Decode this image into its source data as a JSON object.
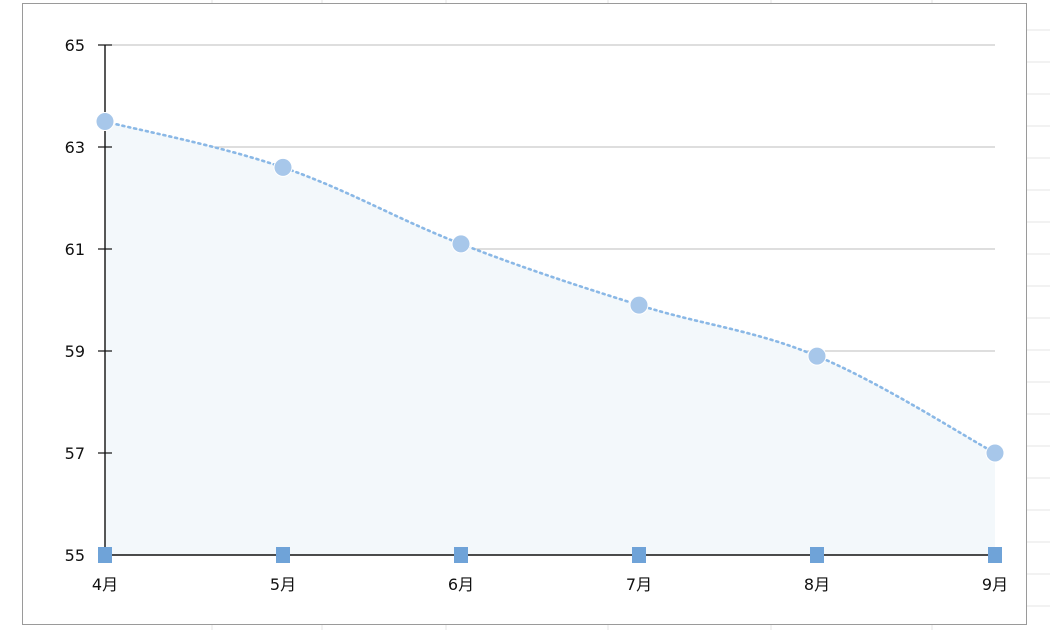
{
  "chart_data": {
    "type": "area",
    "categories": [
      "4月",
      "5月",
      "6月",
      "7月",
      "8月",
      "9月"
    ],
    "series": [
      {
        "values": [
          63.5,
          62.6,
          61.1,
          59.9,
          58.9,
          57.0
        ]
      }
    ],
    "y_ticks": [
      "65",
      "63",
      "61",
      "59",
      "57",
      "55"
    ],
    "ylim": [
      55,
      65
    ],
    "grid": true,
    "legend": "none",
    "colors": {
      "line": "#8ab8e6",
      "point": "#a7c7ea",
      "fill": "#f3f8fb",
      "marker": "#6fa3d8",
      "grid": "#bdbdbd",
      "axis": "#111111"
    }
  }
}
